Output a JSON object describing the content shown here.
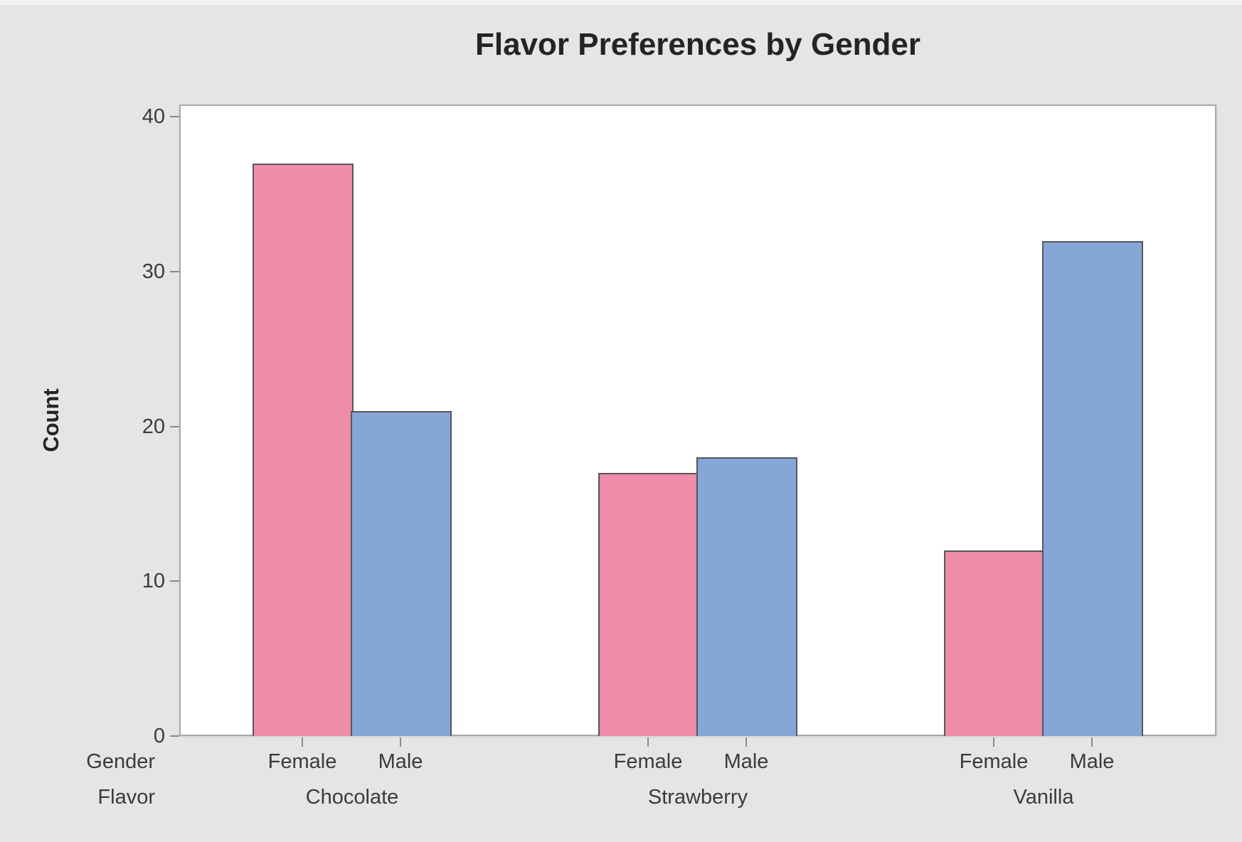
{
  "window": {
    "background": "#e5e5e5",
    "edge_highlight": "#f1f1f1"
  },
  "styles": {
    "plot_bg": "#ffffff",
    "plot_border": "#a8a8a8",
    "bar_border": "#57575a",
    "tick_color": "#8a8a8a",
    "text_color": "#3b3b3b",
    "title_color": "#242424"
  },
  "chart_data": {
    "type": "bar",
    "title": "Flavor Preferences by Gender",
    "ylabel": "Count",
    "xlabel_rows": [
      "Gender",
      "Flavor"
    ],
    "categories": [
      "Chocolate",
      "Strawberry",
      "Vanilla"
    ],
    "series": [
      {
        "name": "Female",
        "color": "#EE8CA9",
        "values": [
          37,
          17,
          12
        ]
      },
      {
        "name": "Male",
        "color": "#85A6D6",
        "values": [
          21,
          18,
          32
        ]
      }
    ],
    "ylim": [
      0,
      40.8
    ],
    "yticks": [
      0,
      10,
      20,
      30,
      40
    ],
    "grid": false,
    "legend_position": "none"
  }
}
